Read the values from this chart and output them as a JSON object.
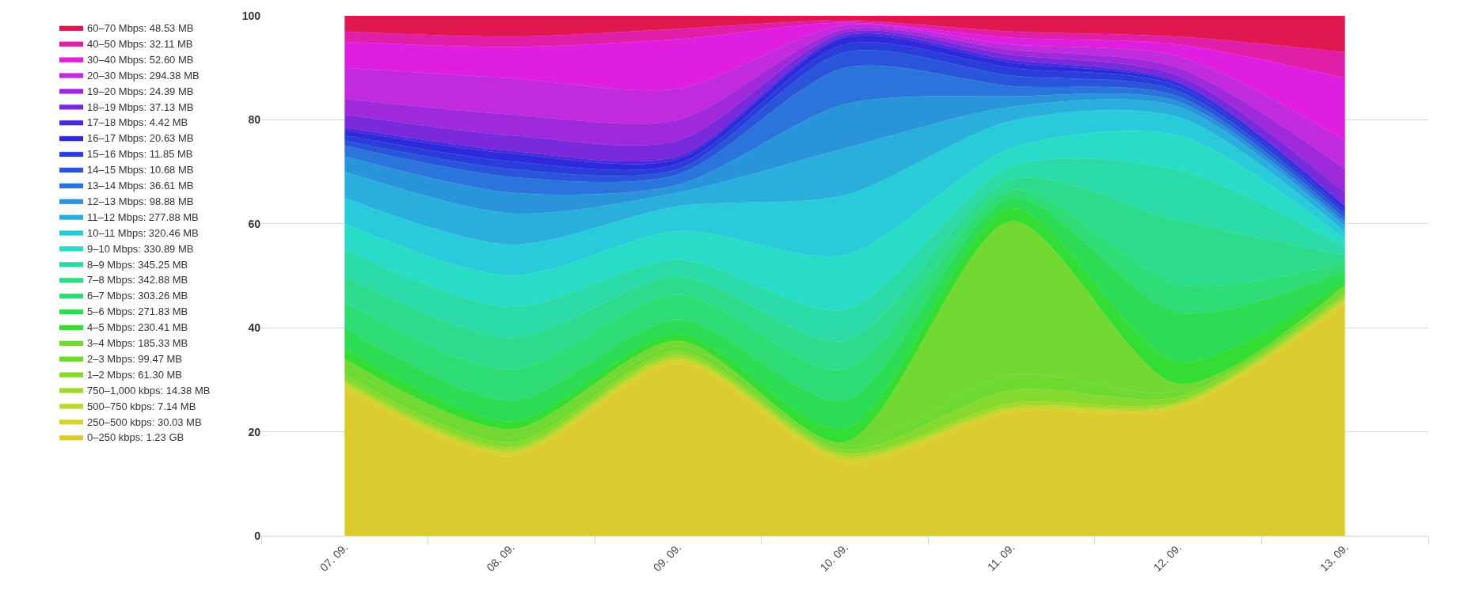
{
  "chart_data": {
    "type": "area",
    "stacked": true,
    "categories": [
      "07. 09.",
      "08. 09.",
      "09. 09.",
      "10. 09.",
      "11. 09.",
      "12. 09.",
      "13. 09."
    ],
    "ylim": [
      0,
      100
    ],
    "yticks": [
      0,
      20,
      40,
      60,
      80,
      100
    ],
    "grid": "y",
    "legend": "left",
    "marker": "none",
    "series": [
      {
        "name": "0–250 kbps: 1.23 GB",
        "color": "#dccb30",
        "values": [
          28,
          15.3,
          33,
          14,
          23.7,
          24.5,
          44.5
        ]
      },
      {
        "name": "250–500 kbps: 30.03 MB",
        "color": "#d6d22e",
        "values": [
          1,
          0.7,
          0.8,
          0.8,
          0.6,
          0.5,
          0.7
        ]
      },
      {
        "name": "500–750 kbps: 7.14 MB",
        "color": "#b9d82c",
        "values": [
          0.5,
          0.5,
          0.5,
          0.5,
          0.5,
          0.4,
          0.5
        ]
      },
      {
        "name": "750–1,000 kbps: 14.38 MB",
        "color": "#a0d82c",
        "values": [
          0.5,
          0.5,
          0.5,
          0.5,
          0.7,
          0.4,
          0.5
        ]
      },
      {
        "name": "1–2 Mbps: 61.30 MB",
        "color": "#86d92e",
        "values": [
          1,
          1,
          0.7,
          0.8,
          2.5,
          1,
          0.6
        ]
      },
      {
        "name": "2–3 Mbps: 99.47 MB",
        "color": "#6ed930",
        "values": [
          1.5,
          1,
          1,
          0.6,
          3,
          1,
          0.7
        ]
      },
      {
        "name": "3–4 Mbps: 185.33 MB",
        "color": "#72d932",
        "values": [
          1.5,
          1.5,
          1,
          0.8,
          29.5,
          1.4,
          0.7
        ]
      },
      {
        "name": "4–5 Mbps: 230.41 MB",
        "color": "#33dd33",
        "values": [
          2,
          1.5,
          1.2,
          2.5,
          2.5,
          4.2,
          1
        ]
      },
      {
        "name": "5–6 Mbps: 271.83 MB",
        "color": "#2ddc55",
        "values": [
          4,
          4,
          2.8,
          5.5,
          2,
          9.5,
          1.8
        ]
      },
      {
        "name": "6–7 Mbps: 303.26 MB",
        "color": "#2ddc75",
        "values": [
          5,
          6,
          4.9,
          6,
          1.5,
          5.5,
          1.5
        ]
      },
      {
        "name": "7–8 Mbps: 342.88 MB",
        "color": "#2cdb8c",
        "values": [
          5,
          6,
          3.4,
          5.5,
          2,
          12.2,
          1.5
        ]
      },
      {
        "name": "8–9 Mbps: 345.25 MB",
        "color": "#2adba8",
        "values": [
          5,
          6,
          3.3,
          6,
          2.5,
          9.7,
          1.5
        ]
      },
      {
        "name": "9–10 Mbps: 330.89 MB",
        "color": "#29dcc8",
        "values": [
          5,
          6,
          5.5,
          10.5,
          3.5,
          6.7,
          1.5
        ]
      },
      {
        "name": "10–11 Mbps: 320.46 MB",
        "color": "#29cbdb",
        "values": [
          5,
          6,
          4.8,
          11.5,
          5.3,
          3.5,
          1.5
        ]
      },
      {
        "name": "11–12 Mbps: 277.88 MB",
        "color": "#2aaedb",
        "values": [
          5,
          6,
          2.6,
          9,
          2.7,
          2,
          1
        ]
      },
      {
        "name": "12–13 Mbps: 98.88 MB",
        "color": "#2a94db",
        "values": [
          3,
          4,
          1.5,
          8.5,
          2,
          1,
          0.7
        ]
      },
      {
        "name": "13–14 Mbps: 36.61 MB",
        "color": "#2a74db",
        "values": [
          2,
          3,
          2,
          7,
          2,
          1,
          0.8
        ]
      },
      {
        "name": "14–15 Mbps: 10.68 MB",
        "color": "#2a55db",
        "values": [
          1,
          1.5,
          1,
          3,
          2,
          1,
          0.8
        ]
      },
      {
        "name": "15–16 Mbps: 11.85 MB",
        "color": "#2a3ddb",
        "values": [
          1,
          1.5,
          1,
          1.5,
          1.5,
          1,
          0.7
        ]
      },
      {
        "name": "16–17 Mbps: 20.63 MB",
        "color": "#2e2adb",
        "values": [
          1,
          1.5,
          1,
          1.3,
          1,
          0.5,
          0.7
        ]
      },
      {
        "name": "17–18 Mbps: 4.42 MB",
        "color": "#4a2adb",
        "values": [
          0.5,
          0.5,
          0.5,
          0.4,
          0.5,
          0.3,
          0.3
        ]
      },
      {
        "name": "18–19 Mbps: 37.13 MB",
        "color": "#7a2adb",
        "values": [
          2.5,
          3,
          3,
          0.6,
          1,
          1.2,
          2.5
        ]
      },
      {
        "name": "19–20 Mbps: 24.39 MB",
        "color": "#a02adb",
        "values": [
          3,
          4,
          4,
          0.6,
          1,
          1.5,
          4.5
        ]
      },
      {
        "name": "20–30 Mbps: 294.38 MB",
        "color": "#c22add",
        "values": [
          6,
          7,
          6,
          0.8,
          1,
          2.2,
          5.5
        ]
      },
      {
        "name": "30–40 Mbps: 52.60 MB",
        "color": "#e01ee0",
        "values": [
          5,
          6,
          9.5,
          0.5,
          1.3,
          2.3,
          12
        ]
      },
      {
        "name": "40–50 Mbps: 32.11 MB",
        "color": "#e01ea8",
        "values": [
          2,
          2,
          2,
          0.4,
          1.2,
          1.5,
          5
        ]
      },
      {
        "name": "60–70 Mbps: 48.53 MB",
        "color": "#e0184f",
        "values": [
          3,
          4,
          2.5,
          0.9,
          3,
          4,
          7
        ]
      }
    ]
  }
}
